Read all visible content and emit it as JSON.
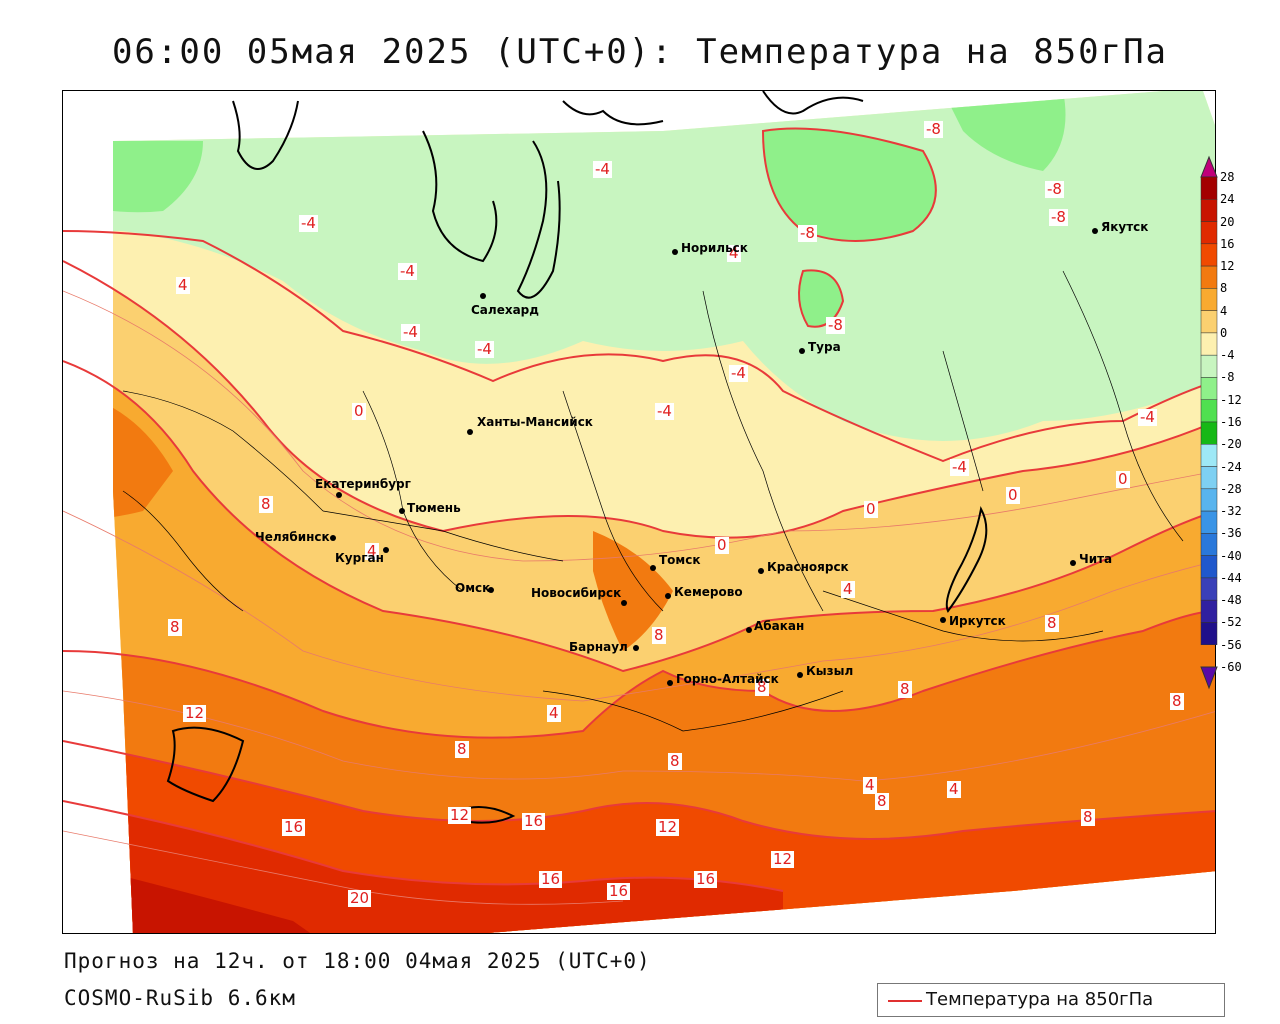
{
  "title": "06:00 05мая 2025 (UTC+0): Температура на 850гПа",
  "footer": {
    "forecast": "Прогноз на 12ч. от 18:00 04мая 2025 (UTC+0)",
    "model": "COSMO-RuSib 6.6км"
  },
  "legend": {
    "label": "Температура на 850гПа",
    "color": "#e03030"
  },
  "colorbar": {
    "ticks": [
      "28",
      "24",
      "20",
      "16",
      "12",
      "8",
      "4",
      "0",
      "-4",
      "-8",
      "-12",
      "-16",
      "-20",
      "-24",
      "-28",
      "-32",
      "-36",
      "-40",
      "-44",
      "-48",
      "-52",
      "-56",
      "-60"
    ],
    "colors": [
      "#c0007a",
      "#a30000",
      "#c81400",
      "#e02a00",
      "#f04a00",
      "#f27a10",
      "#f8aa30",
      "#fbd070",
      "#fdf0b0",
      "#c8f5c0",
      "#8ff08a",
      "#50e050",
      "#16b816",
      "#9ee8f6",
      "#7ed0f2",
      "#58b4ee",
      "#3a94e6",
      "#2a78da",
      "#2058cc",
      "#3a40b8",
      "#3020a0",
      "#20108a",
      "#5a0aa8"
    ]
  },
  "cities": [
    {
      "name": "Норильск"
    },
    {
      "name": "Якутск"
    },
    {
      "name": "Салехард"
    },
    {
      "name": "Тура"
    },
    {
      "name": "Ханты-Мансийск"
    },
    {
      "name": "Екатеринбург"
    },
    {
      "name": "Тюмень"
    },
    {
      "name": "Челябинск"
    },
    {
      "name": "Курган"
    },
    {
      "name": "Омск"
    },
    {
      "name": "Новосибирск"
    },
    {
      "name": "Томск"
    },
    {
      "name": "Кемерово"
    },
    {
      "name": "Красноярск"
    },
    {
      "name": "Барнаул"
    },
    {
      "name": "Абакан"
    },
    {
      "name": "Горно-Алтайск"
    },
    {
      "name": "Кызыл"
    },
    {
      "name": "Иркутск"
    },
    {
      "name": "Чита"
    }
  ],
  "contour_labels": [
    "-8",
    "-8",
    "-8",
    "-8",
    "-8",
    "-4",
    "-4",
    "-4",
    "-4",
    "-4",
    "-4",
    "-4",
    "-4",
    "-4",
    "4",
    "4",
    "0",
    "0",
    "0",
    "0",
    "8",
    "8",
    "4",
    "4",
    "0",
    "8",
    "8",
    "8",
    "4",
    "8",
    "8",
    "12",
    "8",
    "12",
    "16",
    "16",
    "12",
    "16",
    "16",
    "16",
    "12",
    "20",
    "8",
    "4",
    "8",
    "4",
    "8"
  ]
}
